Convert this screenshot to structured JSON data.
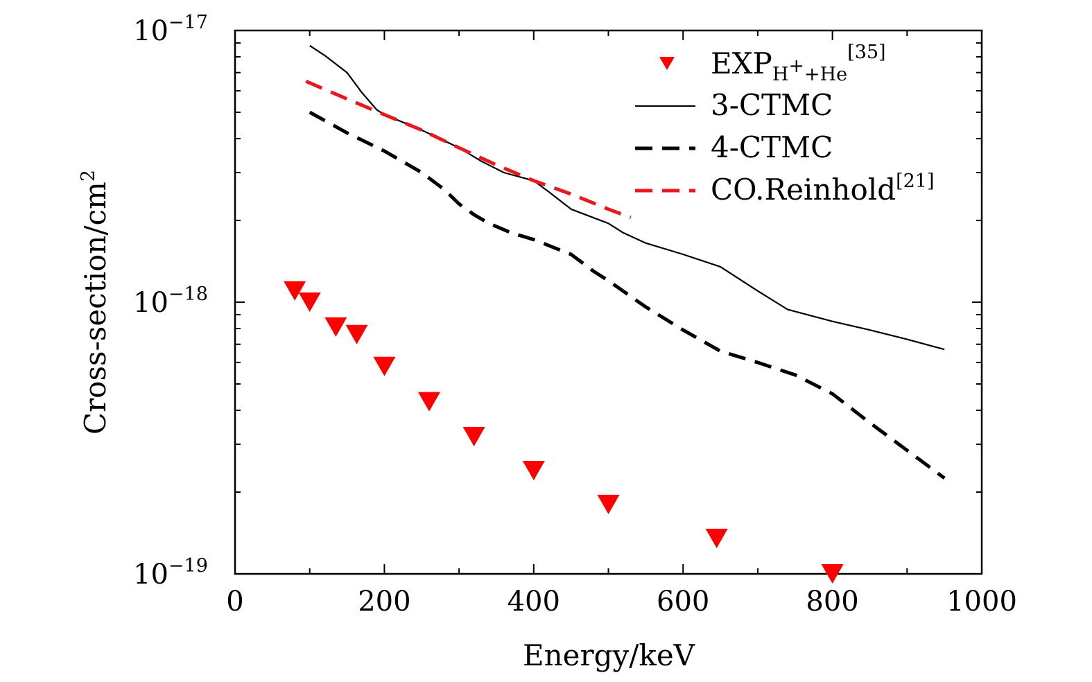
{
  "chart_data": {
    "type": "line",
    "xlabel": "Energy/keV",
    "ylabel": "Cross-section/cm",
    "ylabel_sup": "2",
    "xlim": [
      0,
      1000
    ],
    "ylim": [
      1e-19,
      1e-17
    ],
    "yscale": "log",
    "grid": false,
    "legend_position": "top-right",
    "x_ticks": [
      0,
      200,
      400,
      600,
      800,
      1000
    ],
    "y_ticks": [
      {
        "value": 1e-19,
        "base": "10",
        "exp": "−19"
      },
      {
        "value": 1e-18,
        "base": "10",
        "exp": "−18"
      },
      {
        "value": 1e-17,
        "base": "10",
        "exp": "−17"
      }
    ],
    "series": [
      {
        "name": "EXP",
        "name_sub": "H",
        "name_sub_sup": "+",
        "name_sub_tail": "+He",
        "name_sup": "[35]",
        "style": "markers",
        "marker": "triangle-down",
        "color": "#ff0000",
        "x": [
          80,
          100,
          135,
          163,
          200,
          260,
          320,
          400,
          500,
          645,
          800
        ],
        "y": [
          1.1e-18,
          1e-18,
          8.1e-19,
          7.6e-19,
          5.8e-19,
          4.3e-19,
          3.2e-19,
          2.4e-19,
          1.8e-19,
          1.35e-19,
          1e-19
        ]
      },
      {
        "name": "3-CTMC",
        "style": "solid",
        "color": "#000000",
        "x": [
          100,
          120,
          150,
          170,
          190,
          200,
          250,
          300,
          330,
          360,
          400,
          420,
          450,
          500,
          520,
          550,
          600,
          650,
          700,
          740,
          800,
          850,
          900,
          950
        ],
        "y": [
          8.8e-18,
          8.1e-18,
          7e-18,
          5.9e-18,
          5.1e-18,
          4.9e-18,
          4.3e-18,
          3.7e-18,
          3.3e-18,
          3e-18,
          2.8e-18,
          2.55e-18,
          2.2e-18,
          1.95e-18,
          1.8e-18,
          1.65e-18,
          1.5e-18,
          1.35e-18,
          1.1e-18,
          9.4e-19,
          8.5e-19,
          7.9e-19,
          7.3e-19,
          6.7e-19
        ]
      },
      {
        "name": "4-CTMC",
        "style": "dashed",
        "color": "#000000",
        "x": [
          100,
          150,
          200,
          250,
          280,
          300,
          320,
          340,
          370,
          400,
          450,
          480,
          500,
          550,
          600,
          650,
          700,
          750,
          800,
          850,
          900,
          950
        ],
        "y": [
          5e-18,
          4.2e-18,
          3.6e-18,
          3e-18,
          2.6e-18,
          2.3e-18,
          2.1e-18,
          1.95e-18,
          1.8e-18,
          1.7e-18,
          1.5e-18,
          1.3e-18,
          1.2e-18,
          9.6e-19,
          7.9e-19,
          6.6e-19,
          6e-19,
          5.4e-19,
          4.6e-19,
          3.6e-19,
          2.85e-19,
          2.25e-19
        ]
      },
      {
        "name": "CO.Reinhold",
        "name_sup": "[21]",
        "style": "dashed",
        "color": "#e8191d",
        "x": [
          95,
          150,
          200,
          250,
          300,
          350,
          400,
          450,
          500,
          530
        ],
        "y": [
          6.5e-18,
          5.6e-18,
          4.9e-18,
          4.3e-18,
          3.7e-18,
          3.2e-18,
          2.8e-18,
          2.5e-18,
          2.2e-18,
          2.05e-18
        ]
      }
    ]
  }
}
